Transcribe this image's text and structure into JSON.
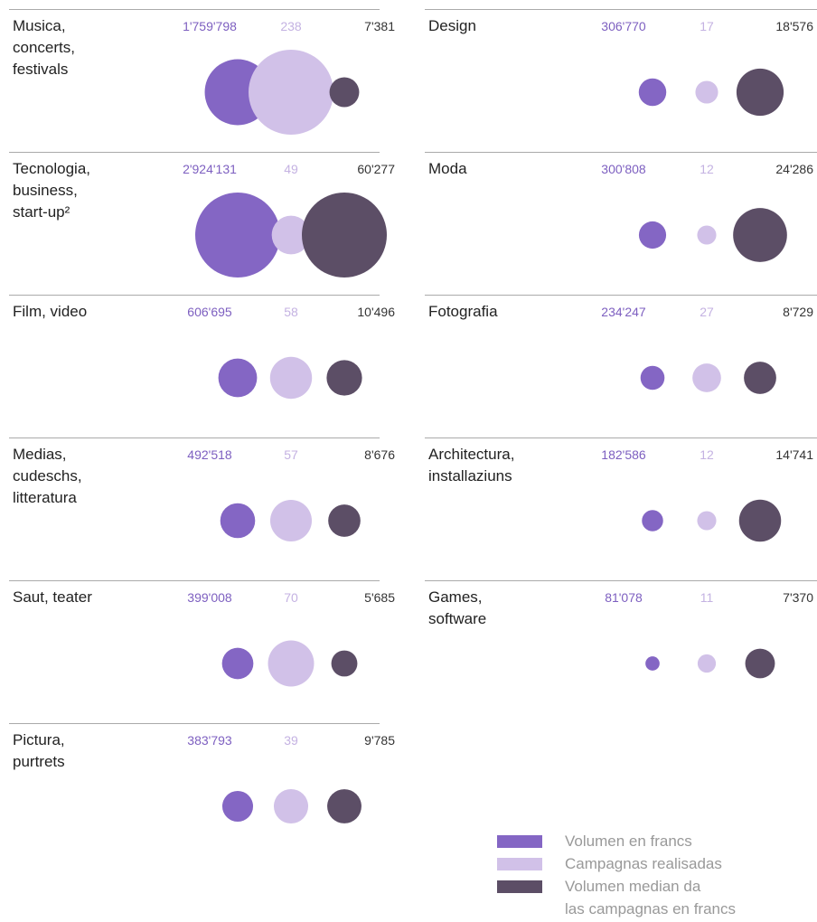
{
  "chart_data": {
    "type": "bubble",
    "categories": [
      "Musica,\nconcerts,\nfestivals",
      "Tecnologia,\nbusiness,\nstart-up²",
      "Film, video",
      "Medias,\ncudeschs,\nlitteratura",
      "Saut, teater",
      "Pictura,\npurtrets",
      "Design",
      "Moda",
      "Fotografia",
      "Architectura,\ninstallaziuns",
      "Games,\nsoftware"
    ],
    "series": [
      {
        "name": "Volumen en francs",
        "color": "#8466c4",
        "values": [
          1759798,
          2924131,
          606695,
          492518,
          399008,
          383793,
          306770,
          300808,
          234247,
          182586,
          81078
        ],
        "value_labels": [
          "1'759'798",
          "2'924'131",
          "606'695",
          "492'518",
          "399'008",
          "383'793",
          "306'770",
          "300'808",
          "234'247",
          "182'586",
          "81'078"
        ]
      },
      {
        "name": "Campagnas realisadas",
        "color": "#d1c1e8",
        "values": [
          238,
          49,
          58,
          57,
          70,
          39,
          17,
          12,
          27,
          12,
          11
        ]
      },
      {
        "name": "Volumen median da\nlas campagnas en francs",
        "color": "#5c4e66",
        "values": [
          7381,
          60277,
          10496,
          8676,
          5685,
          9785,
          18576,
          24286,
          8729,
          14741,
          7370
        ],
        "value_labels": [
          "7'381",
          "60'277",
          "10'496",
          "8'676",
          "5'685",
          "9'785",
          "18'576",
          "24'286",
          "8'729",
          "14'741",
          "7'370"
        ]
      }
    ]
  }
}
